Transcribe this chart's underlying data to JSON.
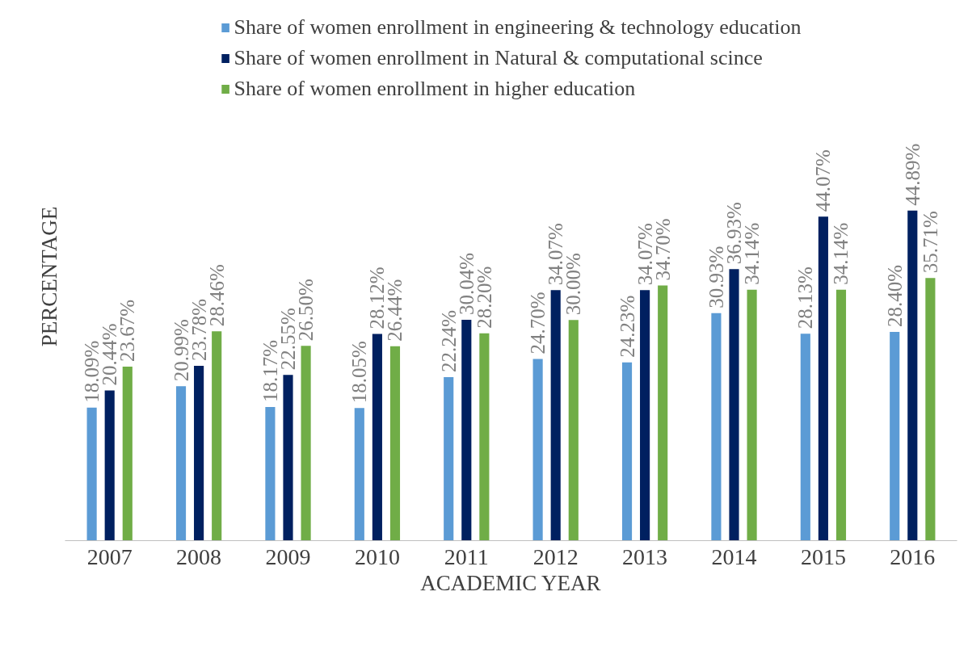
{
  "chart_data": {
    "type": "bar",
    "xlabel": "ACADEMIC YEAR",
    "ylabel": "PERCENTAGE",
    "categories": [
      "2007",
      "2008",
      "2009",
      "2010",
      "2011",
      "2012",
      "2013",
      "2014",
      "2015",
      "2016"
    ],
    "series": [
      {
        "name": "Share of women enrollment in engineering & technology education",
        "color": "#5b9bd5",
        "values": [
          18.09,
          20.99,
          18.17,
          18.05,
          22.24,
          24.7,
          24.23,
          30.93,
          28.13,
          28.4
        ],
        "value_labels": [
          "18.09%",
          "20.99%",
          "18.17%",
          "18.05%",
          "22.24%",
          "24.70%",
          "24.23%",
          "30.93%",
          "28.13%",
          "28.40%"
        ]
      },
      {
        "name": "Share of women enrollment in Natural & computational scince",
        "color": "#002060",
        "values": [
          20.44,
          23.78,
          22.55,
          28.12,
          30.04,
          34.07,
          34.07,
          36.93,
          44.07,
          44.89
        ],
        "value_labels": [
          "20.44%",
          "23.78%",
          "22.55%",
          "28.12%",
          "30.04%",
          "34.07%",
          "34.07%",
          "36.93%",
          "44.07%",
          "44.89%"
        ]
      },
      {
        "name": "Share of women enrollment in higher education",
        "color": "#70ad47",
        "values": [
          23.67,
          28.46,
          26.5,
          26.44,
          28.2,
          30.0,
          34.7,
          34.14,
          34.14,
          35.71
        ],
        "value_labels": [
          "23.67%",
          "28.46%",
          "26.50%",
          "26.44%",
          "28.20%",
          "30.00%",
          "34.70%",
          "34.14%",
          "34.14%",
          "35.71%"
        ]
      }
    ],
    "legend": "top"
  }
}
